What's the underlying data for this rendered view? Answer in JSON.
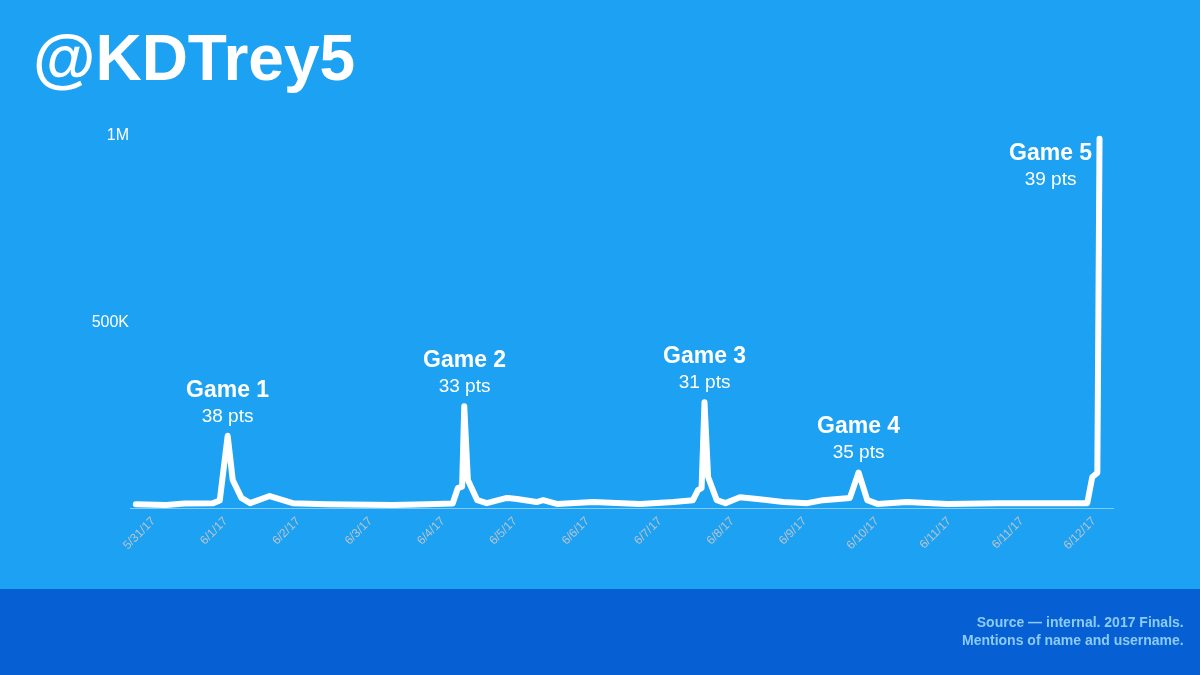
{
  "chart_data": {
    "type": "line",
    "title": "@KDTrey5",
    "annotations": [
      {
        "text": "Game 1\n38 pts",
        "x": "2017-06-01T22:06",
        "y": 193000
      },
      {
        "text": "Game 2\n33 pts",
        "x": "2017-06-04T22:02",
        "y": 272000
      },
      {
        "text": "Game 3\n31 pts",
        "x": "2017-06-07T23:05",
        "y": 283000
      },
      {
        "text": "Game 4\n35 pts",
        "x": "2017-06-09T21:56",
        "y": 95000
      },
      {
        "text": "Game 5\n39 pts",
        "x": "2017-06-12T23:12",
        "y": 987000
      },
      "Source — internal. 2017 Finals.\nMentions of name and username."
    ],
    "x": [
      "2017-05-31T18:10",
      "2017-06-01T03:24",
      "2017-06-01T08:54",
      "2017-06-01T17:42",
      "2017-06-01T19:41",
      "2017-06-01T22:06",
      "2017-06-01T23:38",
      "2017-06-02T02:17",
      "2017-06-02T04:55",
      "2017-06-02T10:52",
      "2017-06-02T17:54",
      "2017-06-03T04:14",
      "2017-06-04T00:16",
      "2017-06-04T10:36",
      "2017-06-04T18:31",
      "2017-06-04T20:04",
      "2017-06-04T21:23",
      "2017-06-04T22:02",
      "2017-06-04T23:08",
      "2017-06-05T02:00",
      "2017-06-05T04:52",
      "2017-06-05T11:01",
      "2017-06-05T14:06",
      "2017-06-05T20:02",
      "2017-06-05T22:01",
      "2017-06-06T02:12",
      "2017-06-06T13:12",
      "2017-06-07T03:30",
      "2017-06-07T13:37",
      "2017-06-07T19:34",
      "2017-06-07T21:06",
      "2017-06-07T22:12",
      "2017-06-07T23:05",
      "2017-06-08T00:11",
      "2017-06-08T02:49",
      "2017-06-08T05:28",
      "2017-06-08T09:52",
      "2017-06-08T15:08",
      "2017-06-08T23:04",
      "2017-06-09T06:19",
      "2017-06-09T11:10",
      "2017-06-09T19:18",
      "2017-06-09T21:56",
      "2017-06-10T00:35",
      "2017-06-10T03:40",
      "2017-06-10T12:41",
      "2017-06-11T01:00",
      "2017-06-11T16:11",
      "2017-06-12T19:28",
      "2017-06-12T21:00",
      "2017-06-12T22:32",
      "2017-06-12T23:12"
    ],
    "values": [
      10000,
      8000,
      12000,
      13000,
      20000,
      193000,
      75000,
      27000,
      13000,
      32000,
      13000,
      10000,
      8000,
      10000,
      12000,
      53000,
      57000,
      272000,
      75000,
      21000,
      13000,
      27000,
      24000,
      16000,
      21000,
      11000,
      16000,
      11000,
      16000,
      21000,
      48000,
      53000,
      283000,
      83000,
      21000,
      13000,
      29000,
      24000,
      16000,
      13000,
      21000,
      27000,
      95000,
      21000,
      11000,
      16000,
      11000,
      13000,
      13000,
      83000,
      94000,
      987000
    ],
    "color": "#ffffff",
    "xlim": [
      "2017-05-31T16:24",
      "2017-06-13T03:36"
    ],
    "xticks": [
      {
        "value": "2017-05-31T23:00",
        "label": "5/31/17"
      },
      {
        "value": "2017-06-01T21:00",
        "label": "6/1/17"
      },
      {
        "value": "2017-06-02T19:00",
        "label": "6/2/17"
      },
      {
        "value": "2017-06-03T17:00",
        "label": "6/3/17"
      },
      {
        "value": "2017-06-04T15:00",
        "label": "6/4/17"
      },
      {
        "value": "2017-06-05T13:00",
        "label": "6/5/17"
      },
      {
        "value": "2017-06-06T11:00",
        "label": "6/6/17"
      },
      {
        "value": "2017-06-07T09:00",
        "label": "6/7/17"
      },
      {
        "value": "2017-06-08T07:00",
        "label": "6/8/17"
      },
      {
        "value": "2017-06-09T05:00",
        "label": "6/9/17"
      },
      {
        "value": "2017-06-10T03:00",
        "label": "6/10/17"
      },
      {
        "value": "2017-06-11T01:00",
        "label": "6/11/17"
      },
      {
        "value": "2017-06-11T23:00",
        "label": "6/11/17"
      },
      {
        "value": "2017-06-12T21:00",
        "label": "6/12/17"
      }
    ],
    "ylim": [
      0,
      1000000
    ],
    "yticks": [
      {
        "value": 500000,
        "label": "500K"
      },
      {
        "value": 1000000,
        "label": "1M"
      }
    ],
    "grid": false,
    "marker": "none",
    "line_style": "solid"
  }
}
